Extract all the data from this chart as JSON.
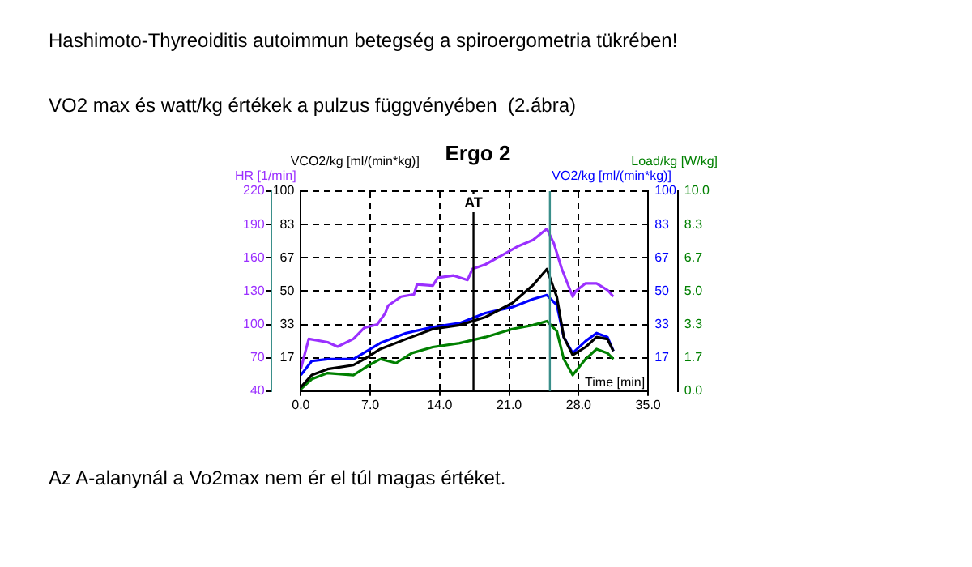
{
  "chart_data": {
    "type": "line",
    "title": "Hashimoto-Thyreoiditis autoimmun betegség a spiroergometria tükrében!",
    "subtitle": "VO2 max és watt/kg értékek a pulzus függvényében  (2.ábra)",
    "annotations": [
      "Ergo 2",
      "Az A-alanynál a Vo2max nem ér el túl magas értéket."
    ],
    "xlabel": "Time [min]",
    "ylabel": "HR [1/min]",
    "y2label": "VCO2/kg [ml/(min*kg)]",
    "y3label": "Load/kg [W/kg]",
    "xlim": [
      0,
      35
    ],
    "xticks": [
      {
        "value": 0,
        "label": "0.0"
      },
      {
        "value": 7,
        "label": "7.0"
      },
      {
        "value": 14,
        "label": "14.0"
      },
      {
        "value": 21,
        "label": "21.0"
      },
      {
        "value": 28,
        "label": "28.0"
      },
      {
        "value": 35,
        "label": "35.0"
      }
    ],
    "ylim": [
      40,
      220
    ],
    "yticks": [
      40,
      70,
      100,
      130,
      160,
      190,
      220
    ],
    "y2lim": [
      0,
      100
    ],
    "y2ticks": [
      {
        "value": 16.667,
        "label": "17"
      },
      {
        "value": 33.333,
        "label": "33"
      },
      {
        "value": 50,
        "label": "50"
      },
      {
        "value": 66.667,
        "label": "67"
      },
      {
        "value": 83.333,
        "label": "83"
      },
      {
        "value": 100,
        "label": "100"
      }
    ],
    "y3lim": [
      0,
      10
    ],
    "y3ticks": [
      {
        "value": 0,
        "label": "0.0"
      },
      {
        "value": 1.667,
        "label": "1.7"
      },
      {
        "value": 3.333,
        "label": "3.3"
      },
      {
        "value": 5,
        "label": "5.0"
      },
      {
        "value": 6.667,
        "label": "6.7"
      },
      {
        "value": 8.333,
        "label": "8.3"
      },
      {
        "value": 10,
        "label": "10.0"
      }
    ],
    "grid": true,
    "legend": false,
    "marker": "none",
    "line_style": "solid",
    "ref_lines": [
      {
        "axis": "x",
        "value": 17.4,
        "label": "AT",
        "color": "#000000"
      },
      {
        "axis": "x",
        "value": 25.1,
        "color": "#3a8f8a"
      }
    ],
    "series": [
      {
        "axis": "y",
        "color": "#9b30ff",
        "x": [
          0,
          0.8,
          2.7,
          3.7,
          5.3,
          6.4,
          7.7,
          8.5,
          8.8,
          10.1,
          11.4,
          11.7,
          13.3,
          13.8,
          15.4,
          16.8,
          17.3,
          18.6,
          20.2,
          21.8,
          23.4,
          24.8,
          25.5,
          26.3,
          27.4,
          27.7,
          28.7,
          29.8,
          30.9,
          31.5
        ],
        "values": [
          60,
          87,
          84,
          80,
          87,
          97,
          100,
          110,
          117,
          125,
          127,
          136,
          135,
          142,
          144,
          140,
          150,
          154,
          162,
          170,
          176,
          186,
          173,
          150,
          125,
          130,
          137,
          137,
          131,
          125
        ]
      },
      {
        "axis": "y2",
        "color": "#000000",
        "x": [
          0,
          1.1,
          2.7,
          5.3,
          6.4,
          8.0,
          10.6,
          13.3,
          16.0,
          18.6,
          21.3,
          23.4,
          24.8,
          25.8,
          26.5,
          27.4,
          28.7,
          29.8,
          30.9,
          31.5
        ],
        "values": [
          2,
          8,
          11,
          13,
          16,
          21,
          26,
          31,
          33,
          37,
          44,
          53,
          61,
          47,
          27,
          18,
          22,
          27,
          26,
          20
        ]
      },
      {
        "name": "VO2/kg [ml/(min*kg)]",
        "axis": "y2",
        "color": "#0000ff",
        "x": [
          0,
          1.1,
          2.7,
          5.3,
          8.0,
          10.6,
          13.3,
          16.0,
          18.6,
          21.3,
          23.4,
          24.8,
          25.8,
          26.5,
          27.4,
          28.7,
          29.8,
          30.9,
          31.5
        ],
        "values": [
          8,
          15,
          16,
          16,
          24,
          29,
          32,
          34,
          39,
          42,
          46,
          48,
          43,
          27,
          19,
          25,
          29,
          27,
          20
        ]
      },
      {
        "axis": "y3",
        "color": "#008000",
        "x": [
          0,
          1.1,
          2.7,
          5.3,
          6.9,
          8.0,
          9.6,
          11.2,
          13.3,
          16.0,
          18.6,
          21.3,
          23.4,
          24.8,
          25.8,
          26.5,
          27.4,
          28.7,
          29.8,
          30.9,
          31.5
        ],
        "values": [
          0.1,
          0.6,
          0.9,
          0.8,
          1.3,
          1.6,
          1.4,
          1.9,
          2.2,
          2.4,
          2.7,
          3.1,
          3.3,
          3.5,
          3.0,
          1.6,
          0.8,
          1.6,
          2.1,
          1.9,
          1.6
        ]
      }
    ]
  }
}
